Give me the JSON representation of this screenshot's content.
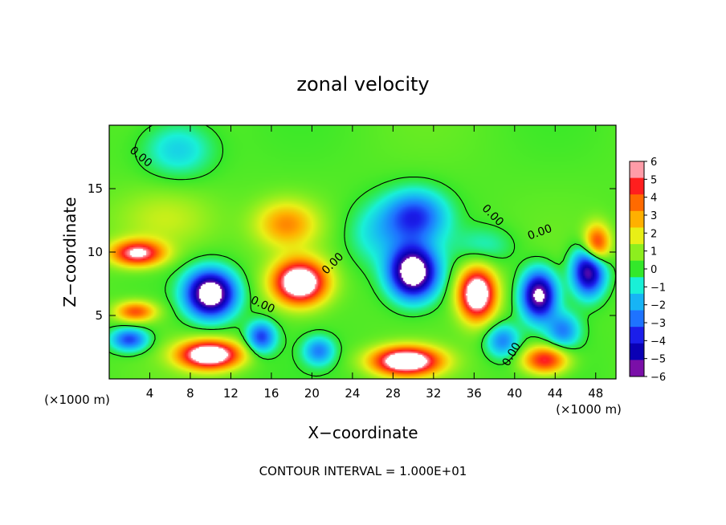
{
  "chart_data": {
    "type": "heatmap",
    "title": "zonal velocity",
    "xlabel": "X−coordinate",
    "ylabel": "Z−coordinate",
    "x_unit_left": "(×1000 m)",
    "x_unit_right": "(×1000 m)",
    "footer": "CONTOUR INTERVAL = 1.000E+01",
    "xlim": [
      0,
      50
    ],
    "ylim": [
      0,
      20
    ],
    "x_ticks": [
      4,
      8,
      12,
      16,
      20,
      24,
      28,
      32,
      36,
      40,
      44,
      48
    ],
    "x_tick_labels": [
      "4",
      "8",
      "12",
      "16",
      "20",
      "24",
      "28",
      "32",
      "36",
      "40",
      "44",
      "48"
    ],
    "y_ticks": [
      5,
      10,
      15
    ],
    "y_tick_labels": [
      "5",
      "10",
      "15"
    ],
    "colorbar": {
      "min": -6,
      "max": 6,
      "ticks": [
        6,
        5,
        4,
        3,
        2,
        1,
        0,
        -1,
        -2,
        -3,
        -4,
        -5,
        -6
      ],
      "tick_labels": [
        "6",
        "5",
        "4",
        "3",
        "2",
        "1",
        "0",
        "−1",
        "−2",
        "−3",
        "−4",
        "−5",
        "−6"
      ],
      "colors": [
        "#7a0fa8",
        "#0a00b4",
        "#1b1eea",
        "#1e73ff",
        "#17b4f5",
        "#19f0d7",
        "#33e82a",
        "#8dee1e",
        "#e8ef16",
        "#ffb000",
        "#ff6a00",
        "#ff1e1e",
        "#ff9ca8"
      ]
    },
    "contour_labels": [
      "0.00",
      "0.00",
      "0.00",
      "0.00",
      "0.00",
      "0.00"
    ],
    "features": [
      {
        "x": 30.0,
        "z": 8.4,
        "value": -8
      },
      {
        "x": 10.0,
        "z": 6.7,
        "value": -8
      },
      {
        "x": 47.3,
        "z": 8.5,
        "value": -6.5
      },
      {
        "x": 42.4,
        "z": 6.6,
        "value": -7
      },
      {
        "x": 18.8,
        "z": 7.6,
        "value": 8
      },
      {
        "x": 36.3,
        "z": 6.7,
        "value": 8
      },
      {
        "x": 2.8,
        "z": 9.9,
        "value": 6
      },
      {
        "x": 9.9,
        "z": 1.9,
        "value": 8
      },
      {
        "x": 29.3,
        "z": 1.4,
        "value": 8
      },
      {
        "x": 43.0,
        "z": 1.5,
        "value": 5
      },
      {
        "x": 2.6,
        "z": 5.3,
        "value": 4
      },
      {
        "x": 48.1,
        "z": 10.6,
        "value": 5
      },
      {
        "x": 17.5,
        "z": 12.2,
        "value": 3
      },
      {
        "x": 30.2,
        "z": 12.8,
        "value": -4
      },
      {
        "x": 15.0,
        "z": 3.3,
        "value": -4
      },
      {
        "x": 2.0,
        "z": 3.1,
        "value": -4
      },
      {
        "x": 38.8,
        "z": 3.0,
        "value": -3
      },
      {
        "x": 44.8,
        "z": 3.8,
        "value": -3
      },
      {
        "x": 20.7,
        "z": 2.2,
        "value": -3
      },
      {
        "x": 6.8,
        "z": 18.1,
        "value": -2
      },
      {
        "x": 5.6,
        "z": 12.5,
        "value": 1.5
      },
      {
        "x": 26.3,
        "z": 11.4,
        "value": -1.5
      },
      {
        "x": 37.1,
        "z": 10.5,
        "value": -1.2
      }
    ]
  }
}
